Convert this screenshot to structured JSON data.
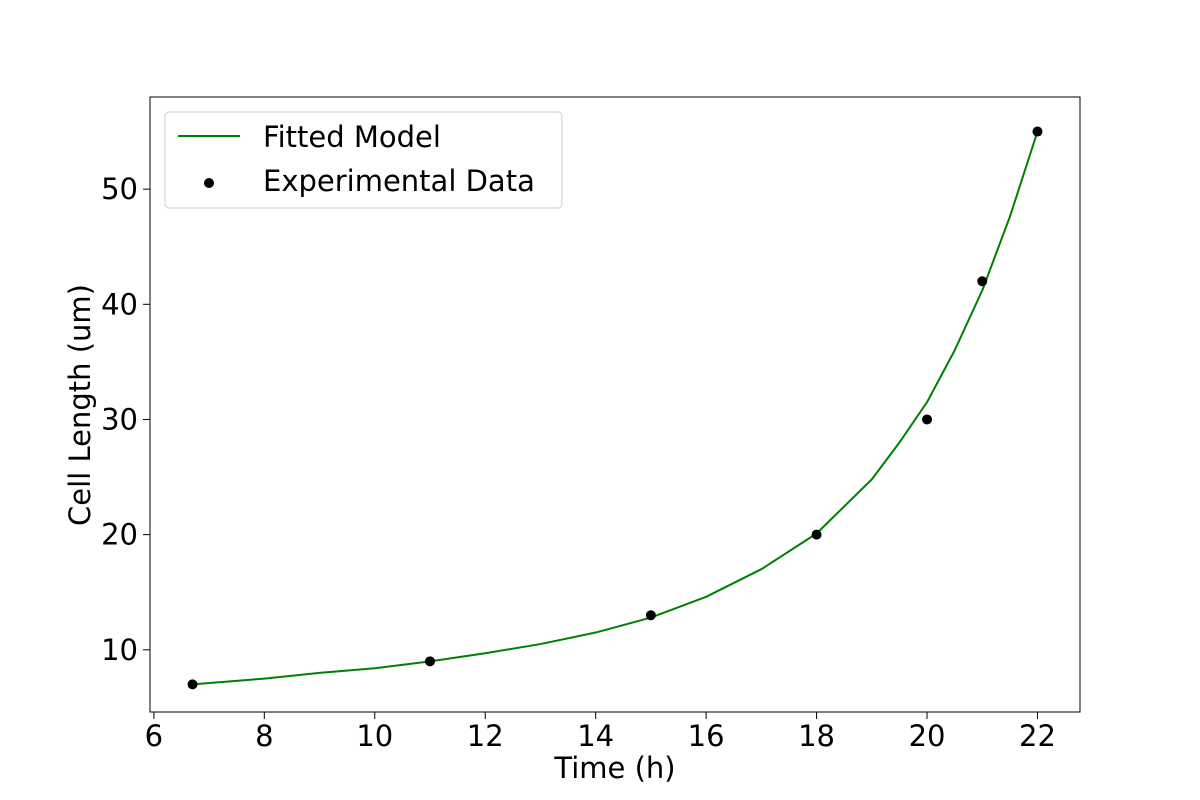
{
  "chart_data": {
    "type": "scatter",
    "title": "",
    "xlabel": "Time (h)",
    "ylabel": "Cell Length (um)",
    "xlim": [
      5.93,
      22.77
    ],
    "ylim": [
      4.6,
      58.0
    ],
    "xticks": [
      6,
      8,
      10,
      12,
      14,
      16,
      18,
      20,
      22
    ],
    "yticks": [
      10,
      20,
      30,
      40,
      50
    ],
    "grid": false,
    "legend_placement": "top-left",
    "series": [
      {
        "name": "Fitted Model",
        "kind": "line",
        "color": "#008000",
        "x": [
          6.7,
          8,
          9,
          10,
          11,
          12,
          13,
          14,
          15,
          16,
          17,
          18,
          19,
          19.5,
          20,
          20.5,
          21,
          21.5,
          22
        ],
        "y": [
          7.0,
          7.5,
          8.0,
          8.4,
          9.0,
          9.7,
          10.5,
          11.5,
          12.8,
          14.6,
          17.0,
          20.1,
          24.8,
          28.0,
          31.5,
          36.0,
          41.2,
          47.6,
          55.0
        ]
      },
      {
        "name": "Experimental Data",
        "kind": "scatter",
        "color": "#000000",
        "x": [
          6.7,
          11,
          15,
          18,
          20,
          21,
          22
        ],
        "y": [
          7,
          9,
          13,
          20,
          30,
          42,
          55
        ]
      }
    ]
  }
}
